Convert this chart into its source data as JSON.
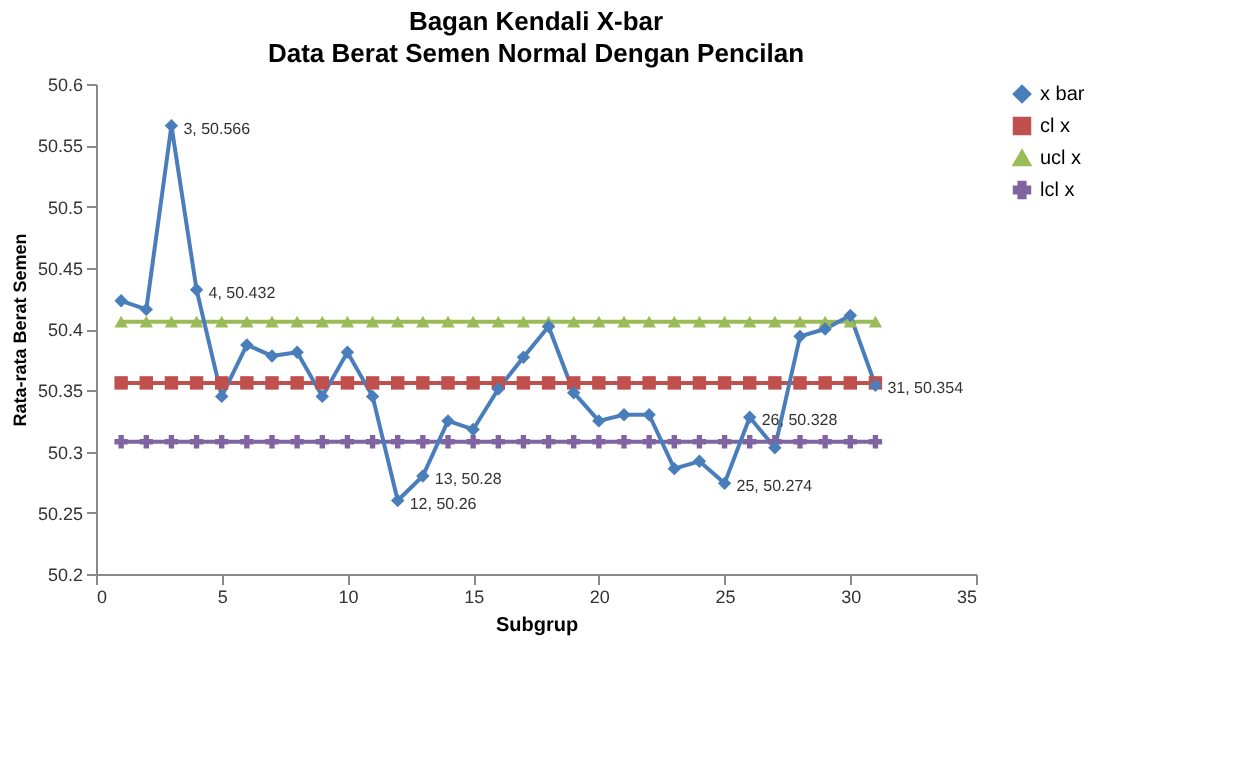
{
  "chart_data": {
    "type": "line",
    "title": "Bagan Kendali X-bar",
    "subtitle": "Data Berat Semen Normal Dengan Pencilan",
    "xlabel": "Subgrup",
    "ylabel": "Rata-rata Berat Semen",
    "x": [
      1,
      2,
      3,
      4,
      5,
      6,
      7,
      8,
      9,
      10,
      11,
      12,
      13,
      14,
      15,
      16,
      17,
      18,
      19,
      20,
      21,
      22,
      23,
      24,
      25,
      26,
      27,
      28,
      29,
      30,
      31
    ],
    "series": [
      {
        "name": "x bar",
        "color": "#4a7ebb",
        "marker": "diamond",
        "values": [
          50.423,
          50.416,
          50.566,
          50.432,
          50.345,
          50.387,
          50.378,
          50.381,
          50.345,
          50.381,
          50.345,
          50.26,
          50.28,
          50.325,
          50.318,
          50.351,
          50.377,
          50.402,
          50.348,
          50.325,
          50.33,
          50.33,
          50.286,
          50.292,
          50.274,
          50.328,
          50.303,
          50.394,
          50.4,
          50.411,
          50.354
        ]
      },
      {
        "name": "cl x",
        "color": "#c0504d",
        "marker": "square",
        "values": [
          50.356,
          50.356,
          50.356,
          50.356,
          50.356,
          50.356,
          50.356,
          50.356,
          50.356,
          50.356,
          50.356,
          50.356,
          50.356,
          50.356,
          50.356,
          50.356,
          50.356,
          50.356,
          50.356,
          50.356,
          50.356,
          50.356,
          50.356,
          50.356,
          50.356,
          50.356,
          50.356,
          50.356,
          50.356,
          50.356,
          50.356
        ]
      },
      {
        "name": "ucl x",
        "color": "#9bbb59",
        "marker": "triangle",
        "values": [
          50.406,
          50.406,
          50.406,
          50.406,
          50.406,
          50.406,
          50.406,
          50.406,
          50.406,
          50.406,
          50.406,
          50.406,
          50.406,
          50.406,
          50.406,
          50.406,
          50.406,
          50.406,
          50.406,
          50.406,
          50.406,
          50.406,
          50.406,
          50.406,
          50.406,
          50.406,
          50.406,
          50.406,
          50.406,
          50.406,
          50.406
        ]
      },
      {
        "name": "lcl x",
        "color": "#8064a2",
        "marker": "cross",
        "values": [
          50.308,
          50.308,
          50.308,
          50.308,
          50.308,
          50.308,
          50.308,
          50.308,
          50.308,
          50.308,
          50.308,
          50.308,
          50.308,
          50.308,
          50.308,
          50.308,
          50.308,
          50.308,
          50.308,
          50.308,
          50.308,
          50.308,
          50.308,
          50.308,
          50.308,
          50.308,
          50.308,
          50.308,
          50.308,
          50.308,
          50.308
        ]
      }
    ],
    "annotations": [
      {
        "text": "3, 50.566",
        "x": 3,
        "y": 50.566
      },
      {
        "text": "4, 50.432",
        "x": 4,
        "y": 50.432
      },
      {
        "text": "12, 50.26",
        "x": 12,
        "y": 50.26
      },
      {
        "text": "13, 50.28",
        "x": 13,
        "y": 50.28
      },
      {
        "text": "25, 50.274",
        "x": 25,
        "y": 50.274
      },
      {
        "text": "26, 50.328",
        "x": 26,
        "y": 50.328
      },
      {
        "text": "31, 50.354",
        "x": 31,
        "y": 50.354
      }
    ],
    "xlim": [
      0,
      35
    ],
    "xticks": [
      0,
      5,
      10,
      15,
      20,
      25,
      30,
      35
    ],
    "ylim": [
      50.2,
      50.6
    ],
    "yticks": [
      50.2,
      50.25,
      50.3,
      50.35,
      50.4,
      50.45,
      50.5,
      50.55,
      50.6
    ],
    "grid": false,
    "legend": "right",
    "line_style": "solid"
  }
}
